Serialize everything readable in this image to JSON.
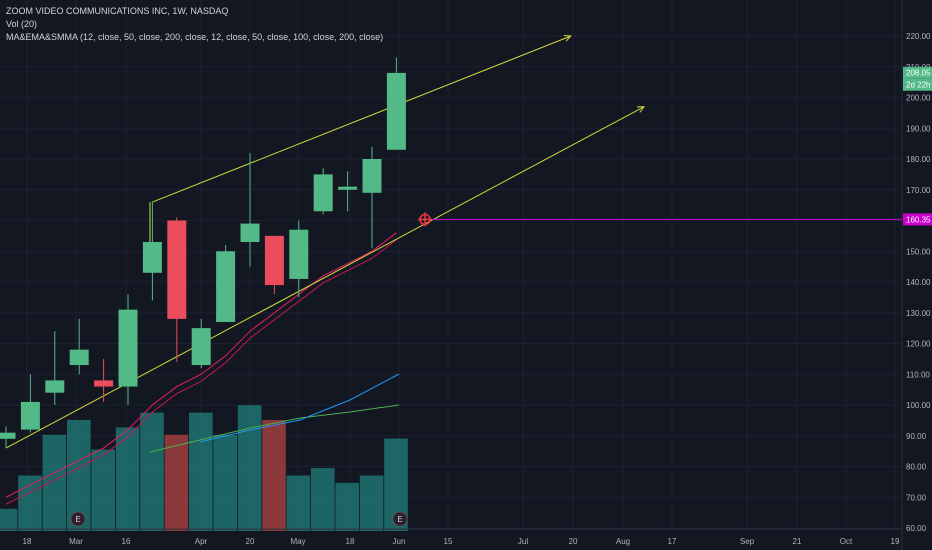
{
  "legend": {
    "title": "ZOOM VIDEO COMMUNICATIONS INC, 1W, NASDAQ",
    "volume": "Vol (20)",
    "indicators": "MA&EMA&SMMA (12, close, 50, close, 200, close, 12, close, 50, close, 100, close, 200, close)"
  },
  "colors": {
    "background": "#131722",
    "up": "#53b987",
    "down": "#eb4d5c",
    "volume_up": "#26a69a",
    "volume_down": "#ef5350",
    "trendline": "#d4d93a",
    "support": "#cc00cc",
    "ma_fast": "#e91e63",
    "ma_mid": "#2196f3",
    "ma_slow": "#4caf50"
  },
  "price_labels": {
    "last_price": "208.05",
    "countdown": "2d 22h",
    "support": "160.35"
  },
  "earnings_marker": "E",
  "chart_data": {
    "type": "candlestick",
    "y_ticks": [
      60,
      70,
      80,
      90,
      100,
      110,
      120,
      130,
      140,
      150,
      160,
      170,
      180,
      190,
      200,
      210,
      220
    ],
    "ylim": [
      60,
      225
    ],
    "x_ticks": [
      "18",
      "Mar",
      "16",
      "Apr",
      "20",
      "May",
      "18",
      "Jun",
      "15",
      "Jul",
      "20",
      "Aug",
      "17",
      "Sep",
      "21",
      "Oct",
      "19"
    ],
    "candles": [
      {
        "o": 89,
        "h": 93,
        "l": 86,
        "c": 91
      },
      {
        "o": 92,
        "h": 110,
        "l": 91,
        "c": 101
      },
      {
        "o": 104,
        "h": 124,
        "l": 100,
        "c": 108
      },
      {
        "o": 113,
        "h": 128,
        "l": 110,
        "c": 118
      },
      {
        "o": 108,
        "h": 115,
        "l": 101,
        "c": 106
      },
      {
        "o": 106,
        "h": 136,
        "l": 100,
        "c": 131
      },
      {
        "o": 143,
        "h": 166,
        "l": 134,
        "c": 153
      },
      {
        "o": 160,
        "h": 161,
        "l": 114,
        "c": 128
      },
      {
        "o": 113,
        "h": 128,
        "l": 112,
        "c": 125
      },
      {
        "o": 127,
        "h": 152,
        "l": 127,
        "c": 150
      },
      {
        "o": 153,
        "h": 182,
        "l": 145,
        "c": 159
      },
      {
        "o": 155,
        "h": 155,
        "l": 136,
        "c": 139
      },
      {
        "o": 141,
        "h": 160,
        "l": 135,
        "c": 157
      },
      {
        "o": 163,
        "h": 177,
        "l": 162,
        "c": 175
      },
      {
        "o": 170,
        "h": 176,
        "l": 163,
        "c": 171
      },
      {
        "o": 169,
        "h": 184,
        "l": 151,
        "c": 180
      },
      {
        "o": 183,
        "h": 213,
        "l": 183,
        "c": 208
      }
    ],
    "volume": [
      {
        "v": 6,
        "up": true
      },
      {
        "v": 15,
        "up": true
      },
      {
        "v": 26,
        "up": true
      },
      {
        "v": 30,
        "up": true
      },
      {
        "v": 22,
        "up": true
      },
      {
        "v": 28,
        "up": true
      },
      {
        "v": 32,
        "up": true
      },
      {
        "v": 26,
        "up": false
      },
      {
        "v": 32,
        "up": true
      },
      {
        "v": 26,
        "up": true
      },
      {
        "v": 34,
        "up": true
      },
      {
        "v": 30,
        "up": false
      },
      {
        "v": 15,
        "up": true
      },
      {
        "v": 17,
        "up": true
      },
      {
        "v": 13,
        "up": true
      },
      {
        "v": 15,
        "up": true
      },
      {
        "v": 25,
        "up": true
      }
    ],
    "ma_fast": [
      70,
      74,
      78,
      82,
      86,
      92,
      100,
      106,
      110,
      116,
      124,
      130,
      136,
      142,
      146,
      150,
      156
    ],
    "support_level": 160.35,
    "upper_trendline": {
      "from": {
        "bar": 6,
        "price": 166
      },
      "to": {
        "bar": 22,
        "price": 220
      }
    },
    "lower_trendline": {
      "from": {
        "bar": 0,
        "price": 86
      },
      "to": {
        "bar": 25,
        "price": 197
      }
    }
  }
}
